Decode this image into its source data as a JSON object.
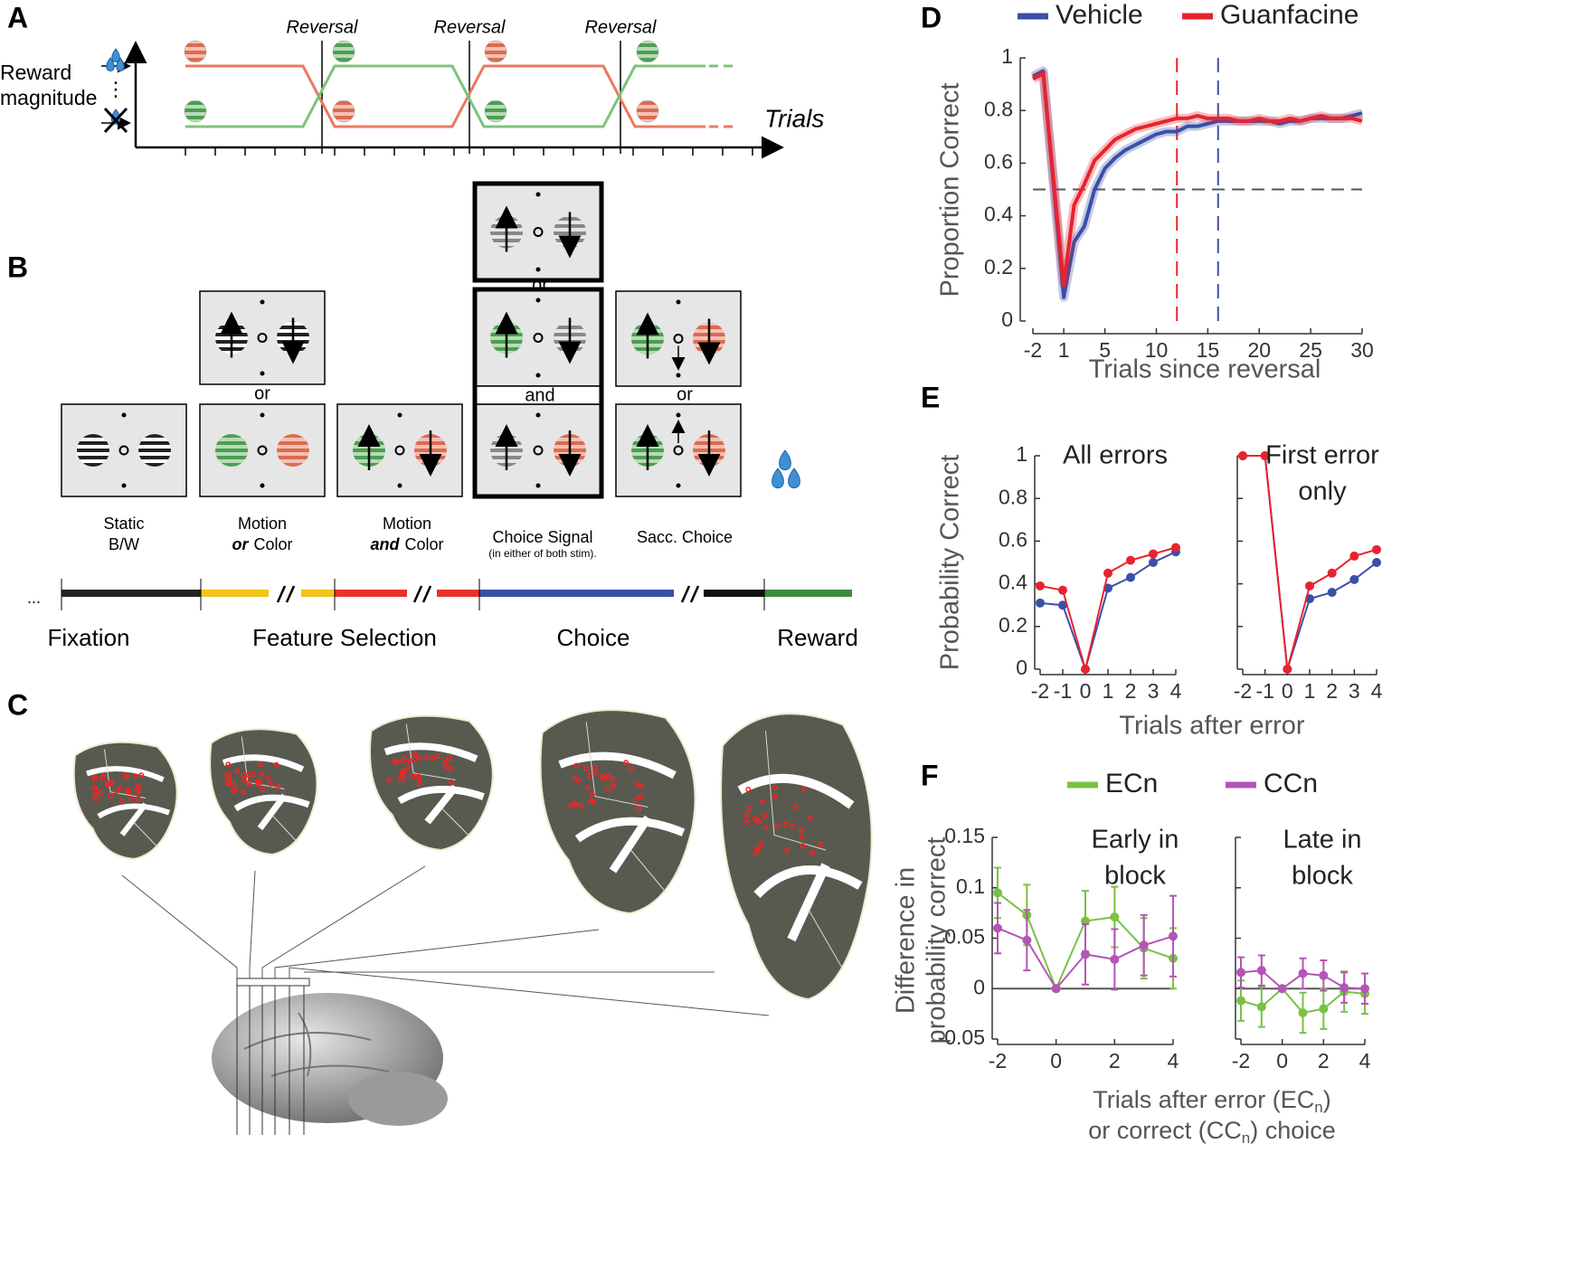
{
  "figure": {
    "panel_labels": [
      "A",
      "B",
      "C",
      "D",
      "E",
      "F"
    ]
  },
  "panel_a": {
    "y_label": [
      "Reward",
      "magnitude"
    ],
    "x_label": "Trials",
    "reversals": [
      "Reversal",
      "Reversal",
      "Reversal"
    ]
  },
  "panel_b": {
    "connectors": [
      "or",
      "or",
      "and",
      "or"
    ],
    "stages": [
      {
        "lines": [
          "Static",
          "B/W"
        ]
      },
      {
        "lines": [
          "Motion",
          "Color"
        ],
        "emphasis": "or"
      },
      {
        "lines": [
          "Motion",
          "Color"
        ],
        "emphasis": "and"
      },
      {
        "lines": [
          "Choice Signal"
        ],
        "note": "(in either of both stim)."
      },
      {
        "lines": [
          "Sacc. Choice"
        ]
      }
    ],
    "ellipsis": "...",
    "epochs": [
      "Fixation",
      "Feature Selection",
      "Choice",
      "Reward"
    ]
  },
  "chart_data": [
    {
      "type": "line",
      "legend": "top",
      "x": [
        -2,
        -1,
        1,
        2,
        3,
        4,
        5,
        6,
        7,
        8,
        9,
        10,
        11,
        12,
        13,
        14,
        15,
        16,
        17,
        18,
        19,
        20,
        21,
        22,
        23,
        24,
        25,
        26,
        27,
        28,
        29,
        30
      ],
      "series": [
        {
          "name": "Vehicle",
          "color": "#3a4fa8",
          "values": [
            0.93,
            0.95,
            0.09,
            0.3,
            0.36,
            0.5,
            0.58,
            0.62,
            0.65,
            0.67,
            0.69,
            0.71,
            0.72,
            0.72,
            0.74,
            0.74,
            0.75,
            0.76,
            0.76,
            0.76,
            0.76,
            0.76,
            0.76,
            0.75,
            0.76,
            0.76,
            0.77,
            0.77,
            0.77,
            0.77,
            0.78,
            0.79
          ]
        },
        {
          "name": "Guanfacine",
          "color": "#e8232e",
          "values": [
            0.92,
            0.94,
            0.14,
            0.44,
            0.52,
            0.61,
            0.65,
            0.69,
            0.71,
            0.73,
            0.74,
            0.75,
            0.76,
            0.77,
            0.77,
            0.78,
            0.77,
            0.77,
            0.77,
            0.76,
            0.76,
            0.77,
            0.76,
            0.76,
            0.77,
            0.76,
            0.77,
            0.78,
            0.77,
            0.77,
            0.77,
            0.76
          ]
        }
      ],
      "xlim": [
        -2,
        30
      ],
      "ylim": [
        0,
        1
      ],
      "xticks": [
        -2,
        1,
        5,
        10,
        15,
        20,
        25,
        30
      ],
      "yticks": [
        0,
        0.2,
        0.4,
        0.6,
        0.8,
        1
      ],
      "xlabel": "Trials since reversal",
      "ylabel": [
        "Proportion Correct"
      ],
      "hlines": [
        {
          "y": 0.5,
          "color": "#555555",
          "style": "dashed"
        }
      ],
      "vlines": [
        {
          "x": 12,
          "color": "#e8232e",
          "style": "dashed"
        },
        {
          "x": 16,
          "color": "#3a4fa8",
          "style": "dashed"
        }
      ]
    },
    {
      "type": "line",
      "markers": true,
      "x": [
        -2,
        -1,
        0,
        1,
        2,
        3,
        4
      ],
      "xlim": [
        -2,
        4
      ],
      "ylim": [
        0,
        1
      ],
      "xticks": [
        -2,
        -1,
        0,
        1,
        2,
        3,
        4
      ],
      "yticks": [
        0,
        0.2,
        0.4,
        0.6,
        0.8,
        1
      ],
      "xlabel": "Trials after error",
      "ylabel": [
        "Probability Correct"
      ],
      "panels": [
        {
          "title": [
            "All errors"
          ],
          "series": [
            {
              "color": "#3a4fa8",
              "values": [
                0.31,
                0.3,
                0,
                0.38,
                0.43,
                0.5,
                0.55
              ]
            },
            {
              "color": "#e8232e",
              "values": [
                0.39,
                0.37,
                0,
                0.45,
                0.51,
                0.54,
                0.57
              ]
            }
          ]
        },
        {
          "title": [
            "First error",
            "only"
          ],
          "series": [
            {
              "color": "#3a4fa8",
              "values": [
                1,
                1,
                0,
                0.33,
                0.36,
                0.42,
                0.5
              ]
            },
            {
              "color": "#e8232e",
              "values": [
                1,
                1,
                0,
                0.39,
                0.45,
                0.53,
                0.56
              ]
            }
          ]
        }
      ]
    },
    {
      "type": "line",
      "markers": true,
      "legend": "top",
      "legend_entries": [
        {
          "name": "ECn",
          "color": "#7ac143"
        },
        {
          "name": "CCn",
          "color": "#b455b6"
        }
      ],
      "x": [
        -2,
        -1,
        0,
        1,
        2,
        3,
        4
      ],
      "xlim": [
        -2,
        4
      ],
      "ylim": [
        -0.05,
        0.15
      ],
      "xticks": [
        -2,
        0,
        2,
        4
      ],
      "yticks": [
        -0.05,
        0,
        0.05,
        0.1,
        0.15
      ],
      "xlabel": [
        [
          "Trials after error (EC",
          "n",
          ")"
        ],
        [
          "or correct (CC",
          "n",
          ") choice"
        ]
      ],
      "ylabel": [
        "Difference in",
        "probability correct"
      ],
      "hlines": [
        {
          "y": 0,
          "color": "#555555",
          "style": "solid"
        }
      ],
      "panels": [
        {
          "title": [
            "Early in",
            "block"
          ],
          "series": [
            {
              "color": "#7ac143",
              "values": [
                0.095,
                0.073,
                0,
                0.067,
                0.071,
                0.04,
                0.03
              ],
              "errors": [
                0.025,
                0.03,
                0,
                0.03,
                0.03,
                0.03,
                0.03
              ]
            },
            {
              "color": "#b455b6",
              "values": [
                0.06,
                0.048,
                0,
                0.034,
                0.029,
                0.043,
                0.052
              ],
              "errors": [
                0.025,
                0.03,
                0,
                0.03,
                0.03,
                0.03,
                0.04
              ]
            }
          ]
        },
        {
          "title": [
            "Late in",
            "block"
          ],
          "series": [
            {
              "color": "#7ac143",
              "values": [
                -0.012,
                -0.018,
                0,
                -0.024,
                -0.02,
                -0.003,
                -0.005
              ],
              "errors": [
                0.02,
                0.02,
                0,
                0.02,
                0.02,
                0.02,
                0.02
              ]
            },
            {
              "color": "#b455b6",
              "values": [
                0.016,
                0.018,
                0,
                0.015,
                0.013,
                0.001,
                0
              ],
              "errors": [
                0.015,
                0.015,
                0,
                0.015,
                0.015,
                0.015,
                0.015
              ]
            }
          ]
        }
      ]
    }
  ]
}
